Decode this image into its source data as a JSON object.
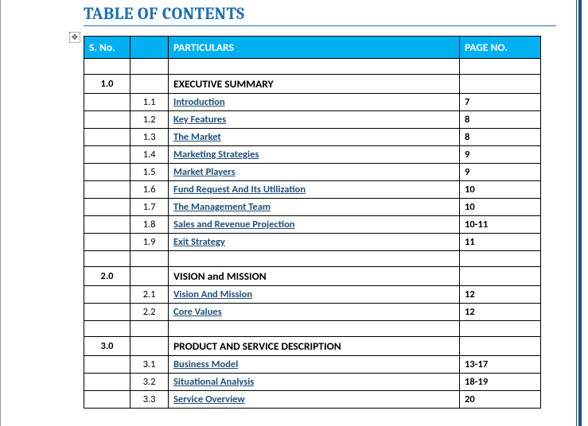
{
  "title": "TABLE OF CONTENTS",
  "header": {
    "sno": "S. No.",
    "sub": "",
    "particulars": "PARTICULARS",
    "page": "PAGE NO."
  },
  "colors": {
    "accent": "#1f6fb3",
    "header_bg": "#00b0f0",
    "header_fg": "#ffffff",
    "link": "#1f4e79",
    "border": "#000000"
  },
  "rows": [
    {
      "type": "spacer"
    },
    {
      "type": "section",
      "sno": "1.0",
      "title": "EXECUTIVE SUMMARY"
    },
    {
      "type": "item",
      "sub": "1.1",
      "label": "Introduction",
      "page": "7"
    },
    {
      "type": "item",
      "sub": "1.2",
      "label": "Key Features",
      "page": "8"
    },
    {
      "type": "item",
      "sub": "1.3",
      "label": "The Market",
      "page": "8"
    },
    {
      "type": "item",
      "sub": "1.4",
      "label": "Marketing Strategies",
      "page": "9"
    },
    {
      "type": "item",
      "sub": "1.5",
      "label": "Market Players",
      "page": "9"
    },
    {
      "type": "item",
      "sub": "1.6",
      "label": "Fund Request And Its Utilization",
      "page": "10"
    },
    {
      "type": "item",
      "sub": "1.7",
      "label": "The Management Team",
      "page": "10"
    },
    {
      "type": "item",
      "sub": "1.8",
      "label": "Sales and Revenue Projection",
      "page": "10-11"
    },
    {
      "type": "item",
      "sub": "1.9",
      "label": "Exit Strategy",
      "page": "11"
    },
    {
      "type": "spacer"
    },
    {
      "type": "section",
      "sno": "2.0",
      "title": "VISION and MISSION"
    },
    {
      "type": "item",
      "sub": "2.1",
      "label": "Vision And Mission",
      "page": "12"
    },
    {
      "type": "item",
      "sub": "2.2",
      "label": "Core Values",
      "page": "12"
    },
    {
      "type": "spacer"
    },
    {
      "type": "section",
      "sno": "3.0",
      "title": "PRODUCT AND SERVICE DESCRIPTION"
    },
    {
      "type": "item",
      "sub": "3.1",
      "label": "Business Model",
      "page": "13-17"
    },
    {
      "type": "item",
      "sub": "3.2",
      "label": "Situational Analysis",
      "page": "18-19"
    },
    {
      "type": "item",
      "sub": "3.3",
      "label": "Service Overview",
      "page": "20"
    }
  ]
}
